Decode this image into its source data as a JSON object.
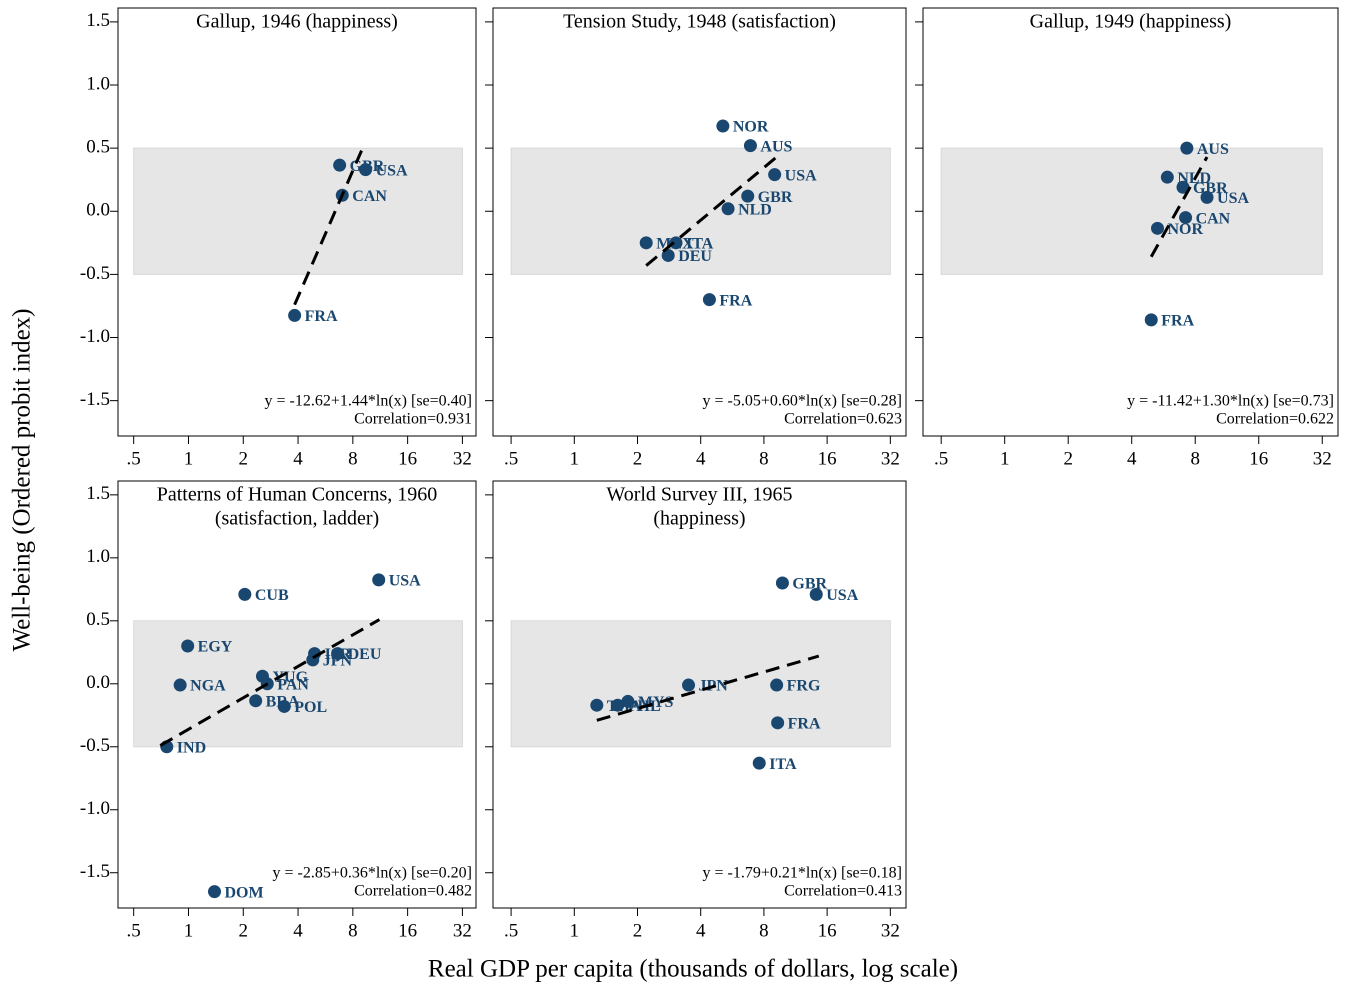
{
  "xlabel": "Real GDP per capita (thousands of dollars, log scale)",
  "ylabel": "Well-being (Ordered probit index)",
  "xscale": "log",
  "xlim": [
    0.41,
    38
  ],
  "xticks": [
    {
      "value": 0.5,
      "label": ".5"
    },
    1,
    2,
    4,
    8,
    16,
    32
  ],
  "ylim": [
    -1.78,
    1.61
  ],
  "yticks": [
    1.5,
    {
      "value": 1.0,
      "label": "1.0"
    },
    0.5,
    {
      "value": 0.0,
      "label": "0.0"
    },
    -0.5,
    {
      "value": -1.0,
      "label": "-1.0"
    },
    -1.5
  ],
  "chart_data": [
    {
      "type": "scatter",
      "title": "Gallup, 1946 (happiness)",
      "series": [
        {
          "color": "#1a476f",
          "x": [
            6.77,
            9.4,
            7.0,
            3.83
          ],
          "values": [
            0.365,
            0.33,
            0.127,
            -0.825
          ],
          "labels": [
            "GBR",
            "USA",
            "CAN",
            "FRA"
          ]
        }
      ],
      "fit": {
        "color": "#000000",
        "x": [
          3.83,
          9.18
        ],
        "values": [
          -0.74,
          0.52
        ]
      },
      "band": {
        "color": "#e6e6e6",
        "x": [
          0.5,
          32
        ],
        "y": [
          -0.5,
          0.5
        ]
      },
      "equation": "y = -12.62+1.44*ln(x) [se=0.40]",
      "correlation": "Correlation=0.931"
    },
    {
      "type": "scatter",
      "title": "Tension Study, 1948 (satisfaction)",
      "series": [
        {
          "color": "#1a476f",
          "x": [
            5.1,
            6.9,
            9.0,
            6.7,
            5.4,
            2.2,
            3.05,
            2.8,
            4.4
          ],
          "values": [
            0.675,
            0.52,
            0.29,
            0.12,
            0.02,
            -0.25,
            -0.25,
            -0.35,
            -0.7
          ],
          "labels": [
            "NOR",
            "AUS",
            "USA",
            "GBR",
            "NLD",
            "MEX",
            "ITA",
            "DEU",
            "FRA"
          ]
        }
      ],
      "fit": {
        "color": "#000000",
        "x": [
          2.2,
          9.2
        ],
        "values": [
          -0.43,
          0.43
        ]
      },
      "band": {
        "color": "#e6e6e6",
        "x": [
          0.5,
          32
        ],
        "y": [
          -0.5,
          0.5
        ]
      },
      "equation": "y = -5.05+0.60*ln(x) [se=0.28]",
      "correlation": "Correlation=0.623"
    },
    {
      "type": "scatter",
      "title": "Gallup, 1949 (happiness)",
      "series": [
        {
          "color": "#1a476f",
          "x": [
            7.3,
            5.9,
            7.0,
            9.1,
            7.2,
            5.3,
            4.95
          ],
          "values": [
            0.5,
            0.27,
            0.19,
            0.11,
            -0.05,
            -0.135,
            -0.86
          ],
          "labels": [
            "AUS",
            "NLD",
            "GBR",
            "USA",
            "CAN",
            "NOR",
            "FRA"
          ]
        }
      ],
      "fit": {
        "color": "#000000",
        "x": [
          4.95,
          9.1
        ],
        "values": [
          -0.36,
          0.43
        ]
      },
      "band": {
        "color": "#e6e6e6",
        "x": [
          0.5,
          32
        ],
        "y": [
          -0.5,
          0.5
        ]
      },
      "equation": "y = -11.42+1.30*ln(x) [se=0.73]",
      "correlation": "Correlation=0.622"
    },
    {
      "type": "scatter",
      "title": "Patterns of Human Concerns, 1960",
      "subtitle": "(satisfaction, ladder)",
      "series": [
        {
          "color": "#1a476f",
          "x": [
            11.1,
            2.04,
            0.99,
            0.9,
            0.76,
            1.39,
            2.55,
            2.71,
            2.34,
            3.36,
            4.82,
            4.93,
            6.6
          ],
          "values": [
            0.825,
            0.71,
            0.3,
            -0.01,
            -0.5,
            -1.65,
            0.06,
            0.0,
            -0.135,
            -0.18,
            0.19,
            0.24,
            0.24
          ],
          "labels": [
            "USA",
            "CUB",
            "EGY",
            "NGA",
            "IND",
            "DOM",
            "YUG",
            "PAN",
            "BRA",
            "POL",
            "JPN",
            "ISR",
            "DEU"
          ]
        }
      ],
      "fit": {
        "color": "#000000",
        "x": [
          0.7,
          11.2
        ],
        "values": [
          -0.49,
          0.51
        ]
      },
      "band": {
        "color": "#e6e6e6",
        "x": [
          0.5,
          32
        ],
        "y": [
          -0.5,
          0.5
        ]
      },
      "equation": "y = -2.85+0.36*ln(x) [se=0.20]",
      "correlation": "Correlation=0.482"
    },
    {
      "type": "scatter",
      "title": "World Survey III, 1965",
      "subtitle": "(happiness)",
      "series": [
        {
          "color": "#1a476f",
          "x": [
            9.8,
            14.2,
            3.5,
            9.2,
            9.3,
            7.6,
            1.28,
            1.61,
            1.8
          ],
          "values": [
            0.8,
            0.71,
            -0.01,
            -0.01,
            -0.31,
            -0.63,
            -0.17,
            -0.17,
            -0.14
          ],
          "labels": [
            "GBR",
            "USA",
            "JPN",
            "FRG",
            "FRA",
            "ITA",
            "THA",
            "PHL",
            "MYS"
          ]
        }
      ],
      "fit": {
        "color": "#000000",
        "x": [
          1.28,
          14.6
        ],
        "values": [
          -0.29,
          0.22
        ]
      },
      "band": {
        "color": "#e6e6e6",
        "x": [
          0.5,
          32
        ],
        "y": [
          -0.5,
          0.5
        ]
      },
      "equation": "y = -1.79+0.21*ln(x) [se=0.18]",
      "correlation": "Correlation=0.413"
    }
  ]
}
